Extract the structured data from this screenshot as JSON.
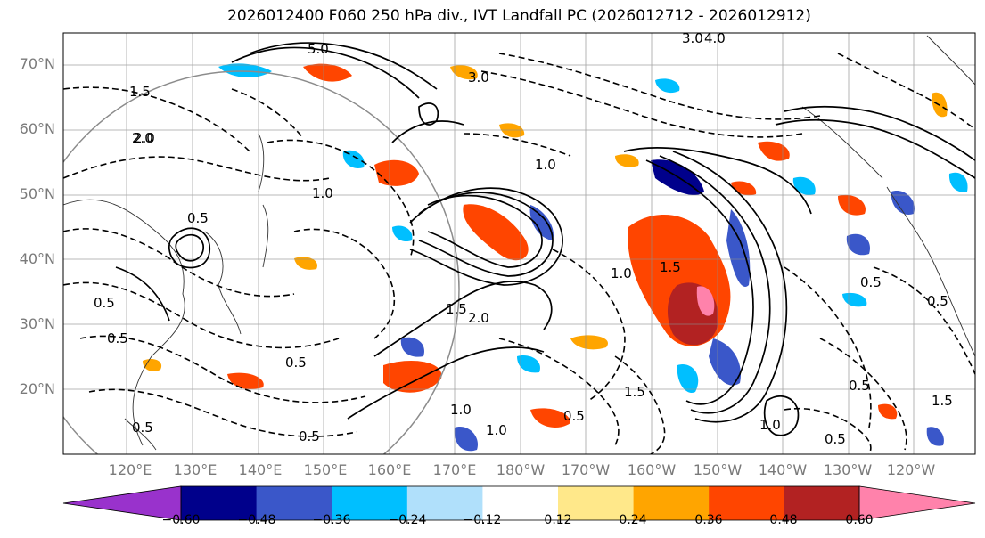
{
  "title": "2026012400 F060 250 hPa div., IVT Landfall PC (2026012712 - 2026012912)",
  "lat_labels": [
    "70°N",
    "60°N",
    "50°N",
    "40°N",
    "30°N",
    "20°N"
  ],
  "lon_labels": [
    "120°E",
    "130°E",
    "140°E",
    "150°E",
    "160°E",
    "170°E",
    "180°W",
    "170°W",
    "160°W",
    "150°W",
    "140°W",
    "130°W",
    "120°W"
  ],
  "colorbar": {
    "colors": [
      "#9932cc",
      "#00008b",
      "#3a57c9",
      "#00bfff",
      "#b0e0fb",
      "#ffffff",
      "#ffe88a",
      "#ffa500",
      "#ff4500",
      "#b22222",
      "#ff82ab"
    ],
    "ticks": [
      "−0.60",
      "−0.48",
      "−0.36",
      "−0.24",
      "−0.12",
      "0.12",
      "0.24",
      "0.36",
      "0.48",
      "0.60"
    ]
  },
  "contour_labels": [
    "4.0",
    "3.0",
    "5.0",
    "3.0",
    "2.0",
    "1.5",
    "1.0",
    "0.5",
    "0.5",
    "2.0",
    "1.5",
    "1.0",
    "0.5",
    "0.5",
    "1.0",
    "1.5",
    "0.5",
    "0.5",
    "0.5",
    "1.0",
    "0.5",
    "0.5",
    "1.5",
    "1.0",
    "2.0",
    "1.5",
    "1.0",
    "0.5",
    "0.5"
  ]
}
